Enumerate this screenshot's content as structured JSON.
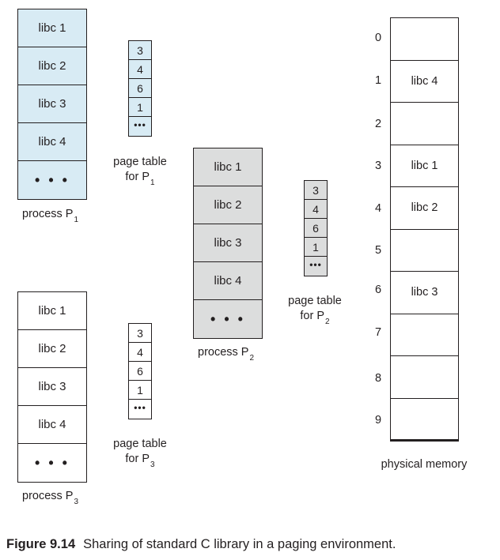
{
  "processes": [
    {
      "cells": [
        "libc 1",
        "libc 2",
        "libc 3",
        "libc 4",
        "• • •"
      ],
      "label": "process",
      "sub": "1"
    },
    {
      "cells": [
        "libc 1",
        "libc 2",
        "libc 3",
        "libc 4",
        "• • •"
      ],
      "label": "process",
      "sub": "2"
    },
    {
      "cells": [
        "libc 1",
        "libc 2",
        "libc 3",
        "libc 4",
        "• • •"
      ],
      "label": "process",
      "sub": "3"
    }
  ],
  "page_tables": [
    {
      "entries": [
        "3",
        "4",
        "6",
        "1",
        "•••"
      ],
      "line1": "page table",
      "line2": "for",
      "sub": "1"
    },
    {
      "entries": [
        "3",
        "4",
        "6",
        "1",
        "•••"
      ],
      "line1": "page table",
      "line2": "for",
      "sub": "2"
    },
    {
      "entries": [
        "3",
        "4",
        "6",
        "1",
        "•••"
      ],
      "line1": "page table",
      "line2": "for",
      "sub": "3"
    }
  ],
  "physical_memory": {
    "label": "physical memory",
    "frames": [
      "0",
      "1",
      "2",
      "3",
      "4",
      "5",
      "6",
      "7",
      "8",
      "9"
    ],
    "contents": [
      "",
      "libc 4",
      "",
      "libc 1",
      "libc 2",
      "",
      "libc 3",
      "",
      "",
      ""
    ]
  },
  "figure": {
    "label": "Figure 9.14",
    "text": "Sharing of standard C library in a paging environment."
  },
  "colors": {
    "process_1": "#d8ebf4",
    "process_2": "#dcdddd",
    "process_3": "#ffffff"
  }
}
